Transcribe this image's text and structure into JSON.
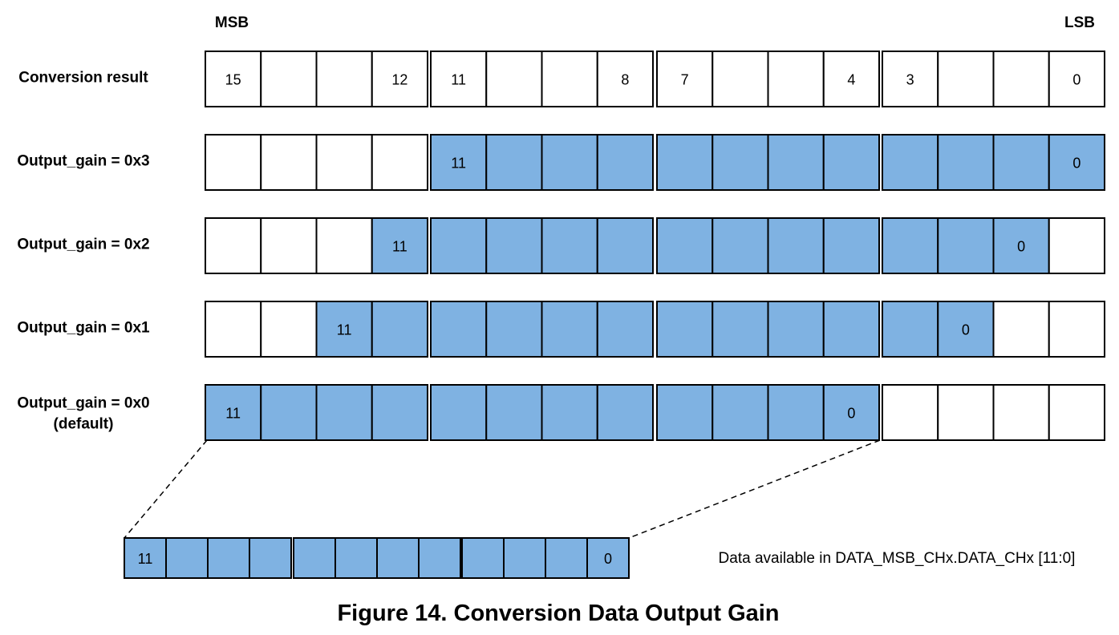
{
  "header": {
    "msb": "MSB",
    "lsb": "LSB"
  },
  "colors": {
    "fill": "#7fb2e2",
    "stroke": "#000000",
    "empty": "#ffffff"
  },
  "rows": [
    {
      "label": [
        "Conversion result"
      ],
      "filled_from": null,
      "filled_to": null,
      "cell_labels": {
        "15": "15",
        "12": "12",
        "11": "11",
        "8": "8",
        "7": "7",
        "4": "4",
        "3": "3",
        "0": "0"
      }
    },
    {
      "label": [
        "Output_gain = 0x3"
      ],
      "filled_from": 11,
      "filled_to": 0,
      "cell_labels": {
        "11": "11",
        "0": "0"
      }
    },
    {
      "label": [
        "Output_gain = 0x2"
      ],
      "filled_from": 12,
      "filled_to": 1,
      "cell_labels": {
        "12": "11",
        "1": "0"
      }
    },
    {
      "label": [
        "Output_gain = 0x1"
      ],
      "filled_from": 13,
      "filled_to": 2,
      "cell_labels": {
        "13": "11",
        "2": "0"
      }
    },
    {
      "label": [
        "Output_gain = 0x0",
        "(default)"
      ],
      "filled_from": 15,
      "filled_to": 4,
      "cell_labels": {
        "15": "11",
        "4": "0"
      }
    }
  ],
  "detail": {
    "cell_labels": {
      "11": "11",
      "0": "0"
    },
    "note": "Data available in DATA_MSB_CHx.DATA_CHx [11:0]"
  },
  "caption": "Figure 14.  Conversion Data Output Gain"
}
